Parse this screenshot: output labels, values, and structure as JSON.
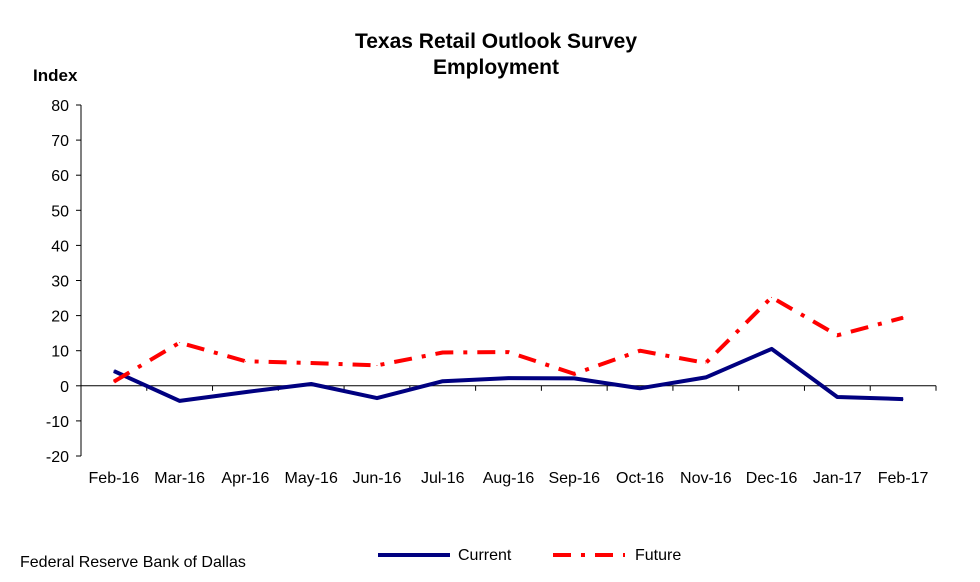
{
  "chart_data": {
    "type": "line",
    "title": "Texas Retail Outlook Survey",
    "subtitle": "Employment",
    "ylabel": "Index",
    "xlabel": "",
    "ylim": [
      -20,
      80
    ],
    "yticks": [
      80,
      70,
      60,
      50,
      40,
      30,
      20,
      10,
      0,
      -10,
      -20
    ],
    "categories": [
      "Feb-16",
      "Mar-16",
      "Apr-16",
      "May-16",
      "Jun-16",
      "Jul-16",
      "Aug-16",
      "Sep-16",
      "Oct-16",
      "Nov-16",
      "Dec-16",
      "Jan-17",
      "Feb-17"
    ],
    "series": [
      {
        "name": "Current",
        "color": "#000080",
        "style": "solid",
        "values": [
          4.2,
          -4.3,
          -1.8,
          0.5,
          -3.5,
          1.3,
          2.2,
          2.1,
          -0.7,
          2.4,
          10.5,
          -3.2,
          -3.8
        ]
      },
      {
        "name": "Future",
        "color": "#ff0000",
        "style": "dash-dot",
        "values": [
          1.2,
          12.3,
          7.0,
          6.5,
          5.8,
          9.5,
          9.6,
          3.4,
          10.0,
          6.5,
          25.2,
          14.4,
          19.4
        ]
      }
    ],
    "grid": false,
    "legend_position": "bottom-center"
  },
  "footer": {
    "source": "Federal Reserve Bank of Dallas"
  }
}
